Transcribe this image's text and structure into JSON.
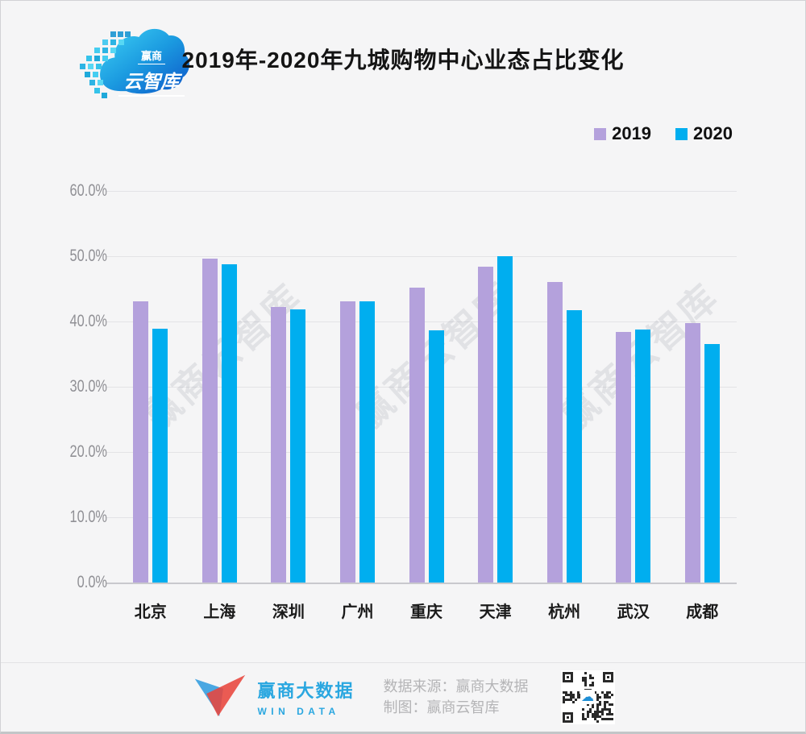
{
  "header": {
    "title": "2019年-2020年九城购物中心业态占比变化",
    "logo": {
      "line1": "赢商",
      "line2": "云智库"
    }
  },
  "chart_data": {
    "type": "bar",
    "title": "2019年-2020年九城购物中心业态占比变化",
    "categories": [
      "北京",
      "上海",
      "深圳",
      "广州",
      "重庆",
      "天津",
      "杭州",
      "武汉",
      "成都"
    ],
    "series": [
      {
        "name": "2019",
        "color": "#b4a1dc",
        "values": [
          43.1,
          49.6,
          42.2,
          43.1,
          45.2,
          48.4,
          46.1,
          38.4,
          39.7
        ]
      },
      {
        "name": "2020",
        "color": "#00aeef",
        "values": [
          38.9,
          48.8,
          41.9,
          43.1,
          38.6,
          50.0,
          41.7,
          38.8,
          36.6
        ]
      }
    ],
    "ylabel": "",
    "ylim": [
      0,
      60
    ],
    "ytick_step": 10,
    "yticks": [
      "0.0%",
      "10.0%",
      "20.0%",
      "30.0%",
      "40.0%",
      "50.0%",
      "60.0%"
    ],
    "grid": true,
    "legend_position": "top-right"
  },
  "watermark": {
    "text": "赢商云智库"
  },
  "footer": {
    "brand_cn": "赢商大数据",
    "brand_en": "WIN DATA",
    "source_line1": "数据来源：赢商大数据",
    "source_line2": "制图：赢商云智库"
  },
  "colors": {
    "background": "#f5f5f6",
    "gridline": "#e3e3e6",
    "axis_text": "#909095",
    "brand_blue": "#2aa7e0",
    "series_2019": "#b4a1dc",
    "series_2020": "#00aeef"
  }
}
